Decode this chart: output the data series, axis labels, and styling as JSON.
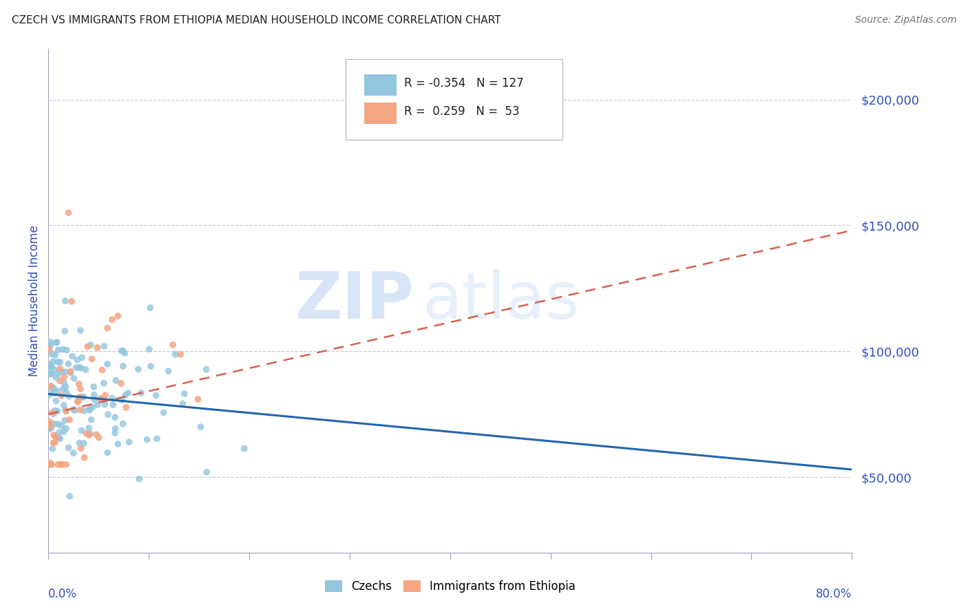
{
  "title": "CZECH VS IMMIGRANTS FROM ETHIOPIA MEDIAN HOUSEHOLD INCOME CORRELATION CHART",
  "source": "Source: ZipAtlas.com",
  "ylabel": "Median Household Income",
  "ytick_values": [
    50000,
    100000,
    150000,
    200000
  ],
  "watermark_zip": "ZIP",
  "watermark_atlas": "atlas",
  "czechs_color": "#92c5de",
  "ethiopia_color": "#f4a582",
  "czech_trendline_color": "#2166ac",
  "ethiopia_trendline_color": "#d6604d",
  "xlim": [
    0.0,
    0.8
  ],
  "ylim": [
    20000,
    220000
  ],
  "background_color": "#ffffff",
  "grid_color": "#c8c8d8",
  "title_color": "#202020",
  "tick_label_color": "#3050c0",
  "czech_R": "-0.354",
  "czech_N": "127",
  "ethiopia_R": "0.259",
  "ethiopia_N": "53",
  "czech_trend_x0": 0.0,
  "czech_trend_y0": 83000,
  "czech_trend_x1": 0.8,
  "czech_trend_y1": 53000,
  "ethiopia_trend_x0": 0.0,
  "ethiopia_trend_y0": 75000,
  "ethiopia_trend_x1": 0.8,
  "ethiopia_trend_y1": 148000
}
